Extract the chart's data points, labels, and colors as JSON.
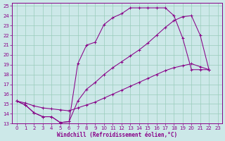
{
  "xlabel": "Windchill (Refroidissement éolien,°C)",
  "bg_color": "#cce8e8",
  "grid_color": "#99ccbb",
  "line_color": "#880088",
  "xlim": [
    0,
    23
  ],
  "ylim": [
    13,
    25
  ],
  "xticks": [
    0,
    1,
    2,
    3,
    4,
    5,
    6,
    7,
    8,
    9,
    10,
    11,
    12,
    13,
    14,
    15,
    16,
    17,
    18,
    19,
    20,
    21,
    22,
    23
  ],
  "yticks": [
    13,
    14,
    15,
    16,
    17,
    18,
    19,
    20,
    21,
    22,
    23,
    24,
    25
  ],
  "curve1_x": [
    0,
    1,
    2,
    3,
    4,
    5,
    6,
    7,
    8,
    9,
    10,
    11,
    12,
    13,
    14,
    15,
    16,
    17,
    18,
    19,
    20,
    21,
    22
  ],
  "curve1_y": [
    15.3,
    14.9,
    14.1,
    13.7,
    13.7,
    13.1,
    13.2,
    19.1,
    21.0,
    21.3,
    23.1,
    23.8,
    24.2,
    24.8,
    24.8,
    24.8,
    24.8,
    24.8,
    24.0,
    21.7,
    18.5,
    18.5,
    18.5
  ],
  "curve2_x": [
    0,
    1,
    2,
    3,
    4,
    5,
    6,
    7,
    8,
    9,
    10,
    11,
    12,
    13,
    14,
    15,
    16,
    17,
    18,
    19,
    20,
    21,
    22
  ],
  "curve2_y": [
    15.3,
    14.9,
    14.1,
    13.7,
    13.7,
    13.1,
    13.2,
    15.3,
    16.5,
    17.2,
    18.0,
    18.7,
    19.3,
    19.9,
    20.5,
    21.2,
    22.0,
    22.8,
    23.5,
    23.9,
    24.0,
    22.0,
    18.5
  ],
  "curve3_x": [
    0,
    1,
    2,
    3,
    4,
    5,
    6,
    7,
    8,
    9,
    10,
    11,
    12,
    13,
    14,
    15,
    16,
    17,
    18,
    19,
    20,
    21,
    22
  ],
  "curve3_y": [
    15.3,
    15.1,
    14.8,
    14.6,
    14.5,
    14.4,
    14.3,
    14.6,
    14.9,
    15.2,
    15.6,
    16.0,
    16.4,
    16.8,
    17.2,
    17.6,
    18.0,
    18.4,
    18.7,
    18.9,
    19.1,
    18.8,
    18.5
  ],
  "figsize": [
    3.2,
    2.0
  ],
  "dpi": 100,
  "tick_fontsize": 5,
  "label_fontsize": 5.5
}
